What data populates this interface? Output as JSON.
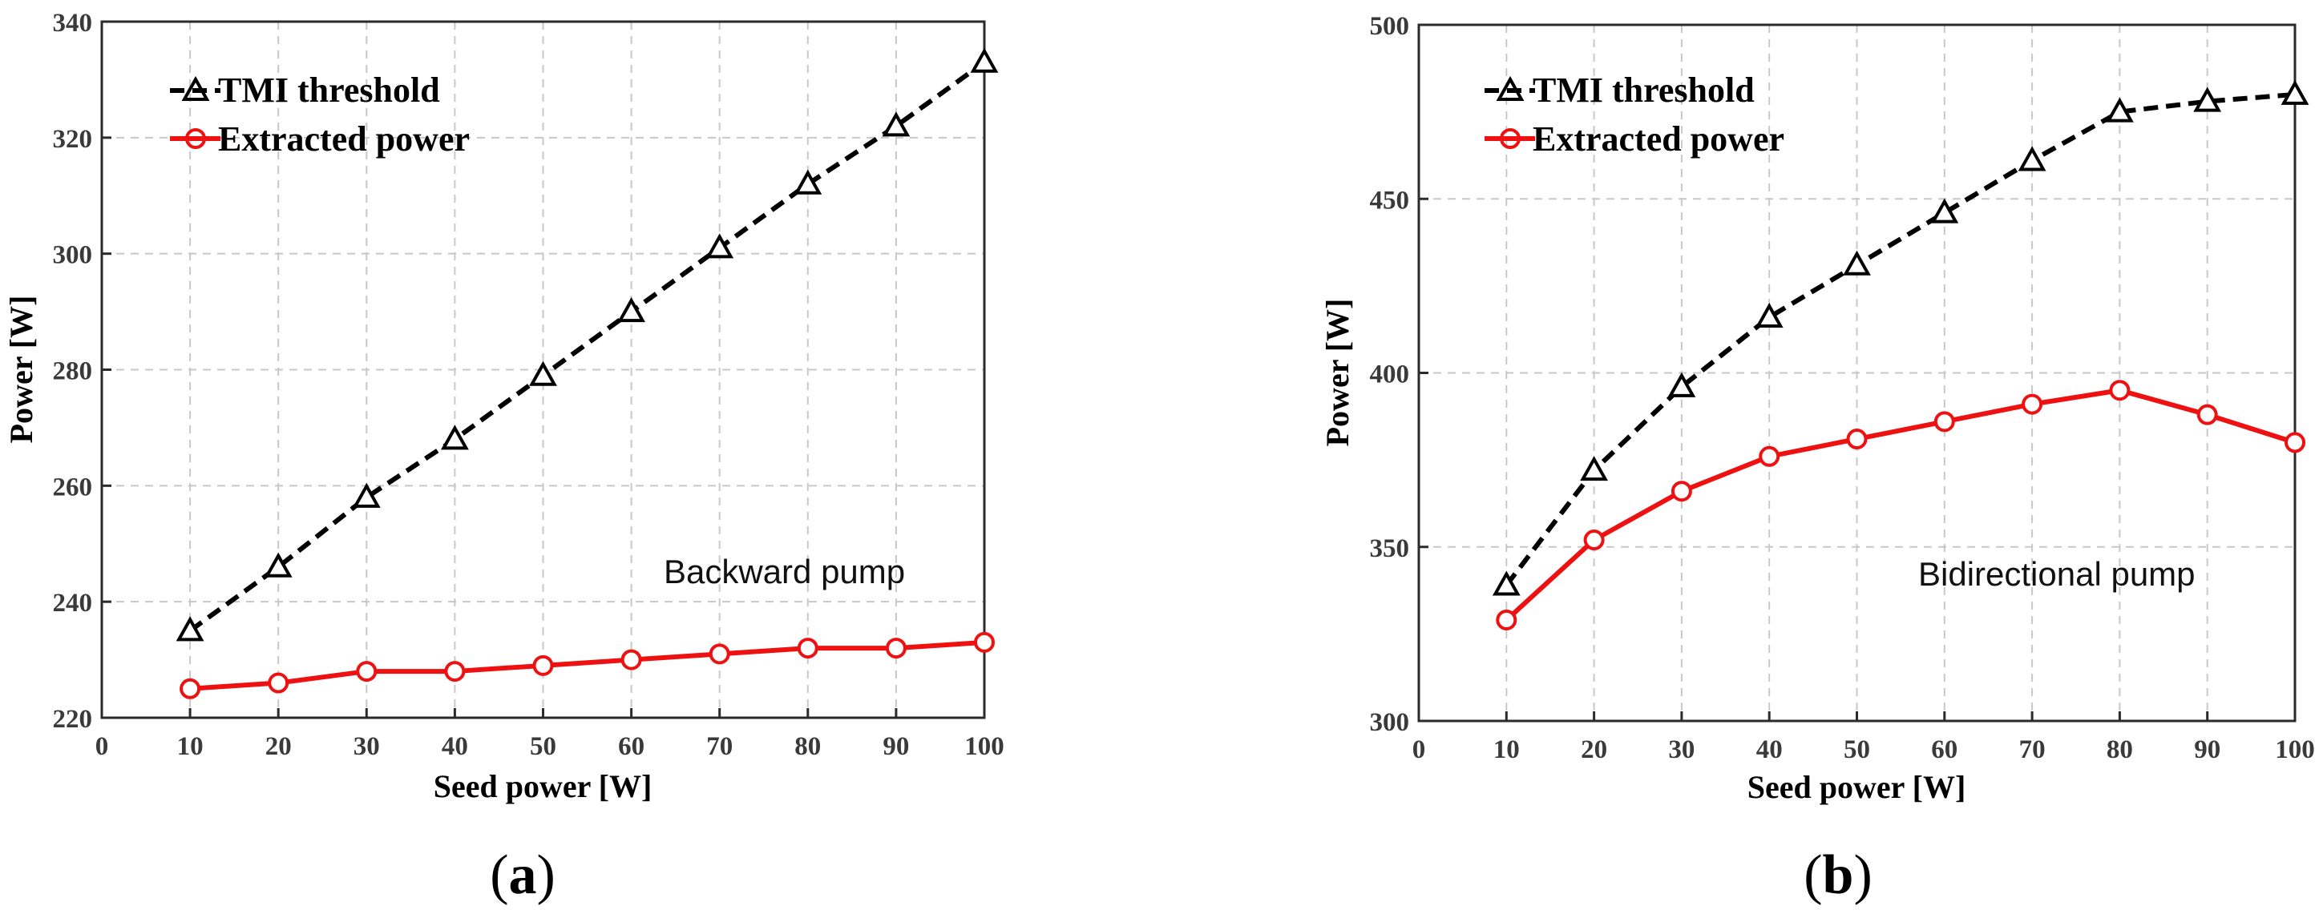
{
  "chart_data": [
    {
      "type": "line",
      "panel_label": "a",
      "annotation": "Backward pump",
      "xlabel": "Seed power [W]",
      "ylabel": "Power [W]",
      "xlim": [
        0,
        100
      ],
      "ylim": [
        220,
        340
      ],
      "xticks": [
        0,
        10,
        20,
        30,
        40,
        50,
        60,
        70,
        80,
        90,
        100
      ],
      "yticks": [
        220,
        240,
        260,
        280,
        300,
        320,
        340
      ],
      "grid": true,
      "legend_position": "top-left",
      "x": [
        10,
        20,
        30,
        40,
        50,
        60,
        70,
        80,
        90,
        100
      ],
      "series": [
        {
          "name": "TMI threshold",
          "color": "#000000",
          "marker": "triangle",
          "linestyle": "dashed",
          "values": [
            235,
            246,
            258,
            268,
            279,
            290,
            301,
            312,
            322,
            333
          ]
        },
        {
          "name": "Extracted power",
          "color": "#ee1111",
          "marker": "circle",
          "linestyle": "solid",
          "values": [
            225,
            226,
            228,
            228,
            229,
            230,
            231,
            232,
            232,
            233
          ]
        }
      ]
    },
    {
      "type": "line",
      "panel_label": "b",
      "annotation": "Bidirectional pump",
      "xlabel": "Seed power [W]",
      "ylabel": "Power [W]",
      "xlim": [
        0,
        100
      ],
      "ylim": [
        300,
        500
      ],
      "xticks": [
        0,
        10,
        20,
        30,
        40,
        50,
        60,
        70,
        80,
        90,
        100
      ],
      "yticks": [
        300,
        350,
        400,
        450,
        500
      ],
      "grid": true,
      "legend_position": "top-left",
      "x": [
        10,
        20,
        30,
        40,
        50,
        60,
        70,
        80,
        90,
        100
      ],
      "series": [
        {
          "name": "TMI threshold",
          "color": "#000000",
          "marker": "triangle",
          "linestyle": "dashed",
          "values": [
            339,
            372,
            396,
            416,
            431,
            446,
            461,
            475,
            478,
            480
          ]
        },
        {
          "name": "Extracted power",
          "color": "#ee1111",
          "marker": "circle",
          "linestyle": "solid",
          "values": [
            329,
            352,
            366,
            376,
            381,
            386,
            391,
            395,
            388,
            380
          ]
        }
      ]
    }
  ]
}
